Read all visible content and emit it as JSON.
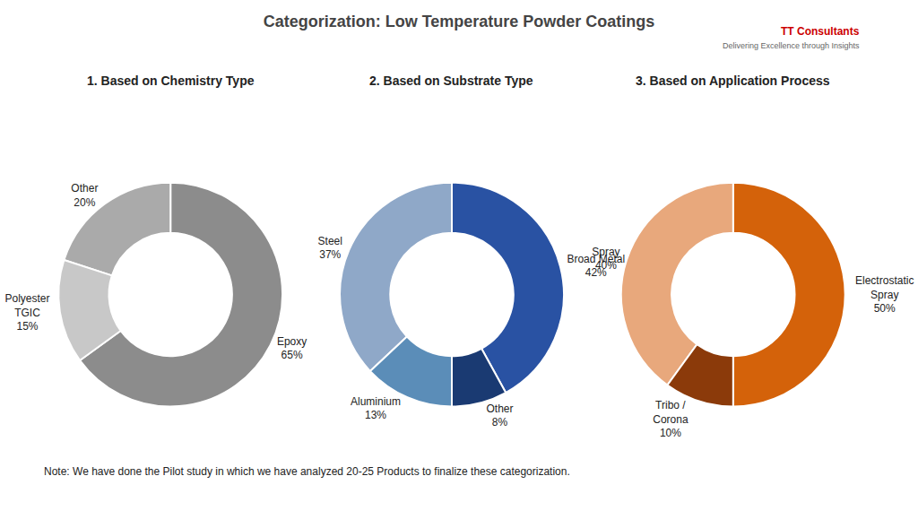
{
  "title": "Categorization: Low Temperature Powder Coatings",
  "annotations": [
    "Note: We have done the Pilot study in which we have analyzed 20-25 Products to finalize these categorization.",
    "TT Consultants",
    "Delivering Excellence through Insights"
  ],
  "chart_data": [
    {
      "type": "pie",
      "title": "1. Based on Chemistry Type",
      "categories": [
        "Epoxy",
        "Other",
        "Polyester\nTGIC"
      ],
      "values": [
        65,
        20,
        15
      ],
      "value_labels": [
        "65%",
        "20%",
        "15%"
      ],
      "colors": [
        "#8c8c8c",
        "#aaaaaa",
        "#c8c8c8"
      ],
      "data_labels": true
    },
    {
      "type": "pie",
      "title": "2. Based on Substrate Type",
      "categories": [
        "Broad Metal",
        "Steel",
        "Aluminium",
        "Other"
      ],
      "values": [
        42,
        37,
        13,
        8
      ],
      "value_labels": [
        "42%",
        "37%",
        "13%",
        "8%"
      ],
      "colors": [
        "#2952a3",
        "#8fa8c8",
        "#5b8db8",
        "#1a3a72"
      ],
      "data_labels": true
    },
    {
      "type": "pie",
      "title": "3. Based on Application Process",
      "categories": [
        "Electrostatic\nSpray",
        "Spray",
        "Tribo /\nCorona"
      ],
      "values": [
        50,
        40,
        10
      ],
      "value_labels": [
        "50%",
        "40%",
        "10%"
      ],
      "colors": [
        "#d4620a",
        "#e8a87c",
        "#8b3a0a"
      ],
      "data_labels": true
    }
  ]
}
